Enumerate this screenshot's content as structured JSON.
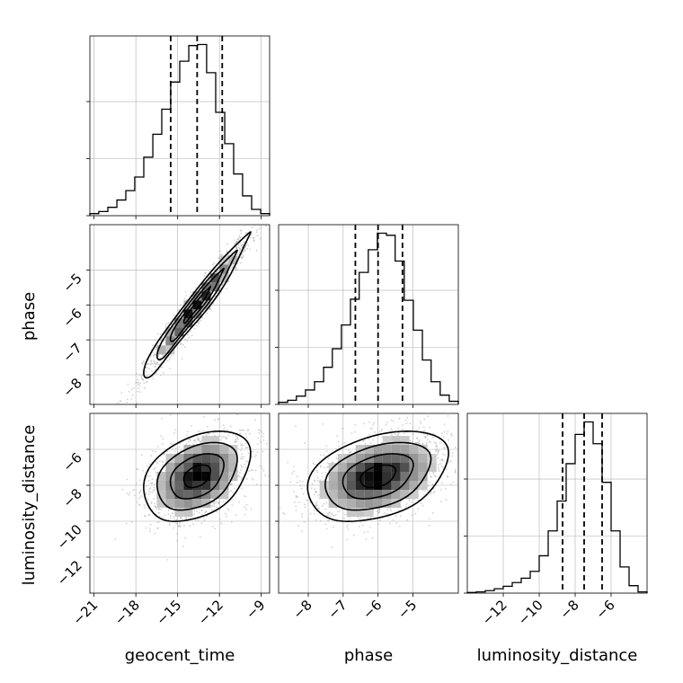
{
  "chart_data": {
    "type": "corner",
    "parameters": [
      "geocent_time",
      "phase",
      "luminosity_distance"
    ],
    "axis_labels": {
      "geocent_time": "geocent_time",
      "phase": "phase",
      "luminosity_distance": "luminosity_distance"
    },
    "ranges": {
      "geocent_time": [
        -21.3,
        -8.4
      ],
      "phase": [
        -8.85,
        -3.7
      ],
      "luminosity_distance": [
        -14.0,
        -4.0
      ]
    },
    "ticks": {
      "geocent_time": [
        -21,
        -18,
        -15,
        -12,
        -9
      ],
      "phase": [
        -8,
        -7,
        -6,
        -5
      ],
      "luminosity_distance": [
        -12,
        -10,
        -8,
        -6
      ]
    },
    "tick_labels": {
      "geocent_time": [
        "−21",
        "−18",
        "−15",
        "−12",
        "−9"
      ],
      "phase": [
        "−8",
        "−7",
        "−6",
        "−5"
      ],
      "luminosity_distance": [
        "−12",
        "−10",
        "−8",
        "−6"
      ]
    },
    "quantiles": {
      "geocent_time": [
        -15.5,
        -13.6,
        -11.8
      ],
      "phase": [
        -6.65,
        -6.0,
        -5.3
      ],
      "luminosity_distance": [
        -8.7,
        -7.5,
        -6.5
      ]
    },
    "histograms": {
      "geocent_time": {
        "edges": [
          -21.3,
          -20.66,
          -20.01,
          -19.36,
          -18.72,
          -18.08,
          -17.43,
          -16.78,
          -16.14,
          -15.5,
          -14.85,
          -14.2,
          -13.56,
          -12.92,
          -12.27,
          -11.62,
          -10.98,
          -10.34,
          -9.69,
          -9.04,
          -8.4
        ],
        "counts": [
          2,
          4,
          8,
          15,
          24,
          37,
          56,
          78,
          102,
          128,
          148,
          163,
          164,
          137,
          99,
          69,
          40,
          19,
          6,
          2
        ]
      },
      "phase": {
        "edges": [
          -8.85,
          -8.59,
          -8.34,
          -8.08,
          -7.82,
          -7.56,
          -7.31,
          -7.05,
          -6.79,
          -6.54,
          -6.28,
          -6.02,
          -5.76,
          -5.51,
          -5.25,
          -4.99,
          -4.73,
          -4.48,
          -4.22,
          -3.96,
          -3.7
        ],
        "counts": [
          2,
          4,
          8,
          14,
          22,
          36,
          54,
          77,
          102,
          128,
          150,
          166,
          164,
          139,
          101,
          72,
          43,
          22,
          9,
          3
        ]
      },
      "luminosity_distance": {
        "edges": [
          -14.0,
          -13.5,
          -13.0,
          -12.5,
          -12.0,
          -11.5,
          -11.0,
          -10.5,
          -10.0,
          -9.5,
          -9.0,
          -8.5,
          -8.0,
          -7.5,
          -7.0,
          -6.5,
          -6.0,
          -5.5,
          -5.0,
          -4.5,
          -4.0
        ],
        "counts": [
          1,
          2,
          4,
          7,
          11,
          17,
          24,
          35,
          60,
          100,
          148,
          208,
          255,
          275,
          240,
          178,
          100,
          42,
          12,
          2
        ]
      }
    },
    "pairs": [
      {
        "x": "geocent_time",
        "y": "phase",
        "center": [
          -13.6,
          -6.0
        ],
        "sigma": [
          1.9,
          1.0
        ],
        "correlation": 0.97
      },
      {
        "x": "geocent_time",
        "y": "luminosity_distance",
        "center": [
          -13.6,
          -7.5
        ],
        "sigma": [
          1.9,
          1.3
        ],
        "correlation": 0.35
      },
      {
        "x": "phase",
        "y": "luminosity_distance",
        "center": [
          -6.0,
          -7.5
        ],
        "sigma": [
          1.0,
          1.3
        ],
        "correlation": 0.35
      }
    ],
    "contour_levels_sigma": [
      0.5,
      1.0,
      1.5,
      2.0
    ],
    "grid": true,
    "colors": {
      "line": "#000000",
      "grid": "#b0b0b0",
      "points": "#9a9a9a"
    }
  }
}
